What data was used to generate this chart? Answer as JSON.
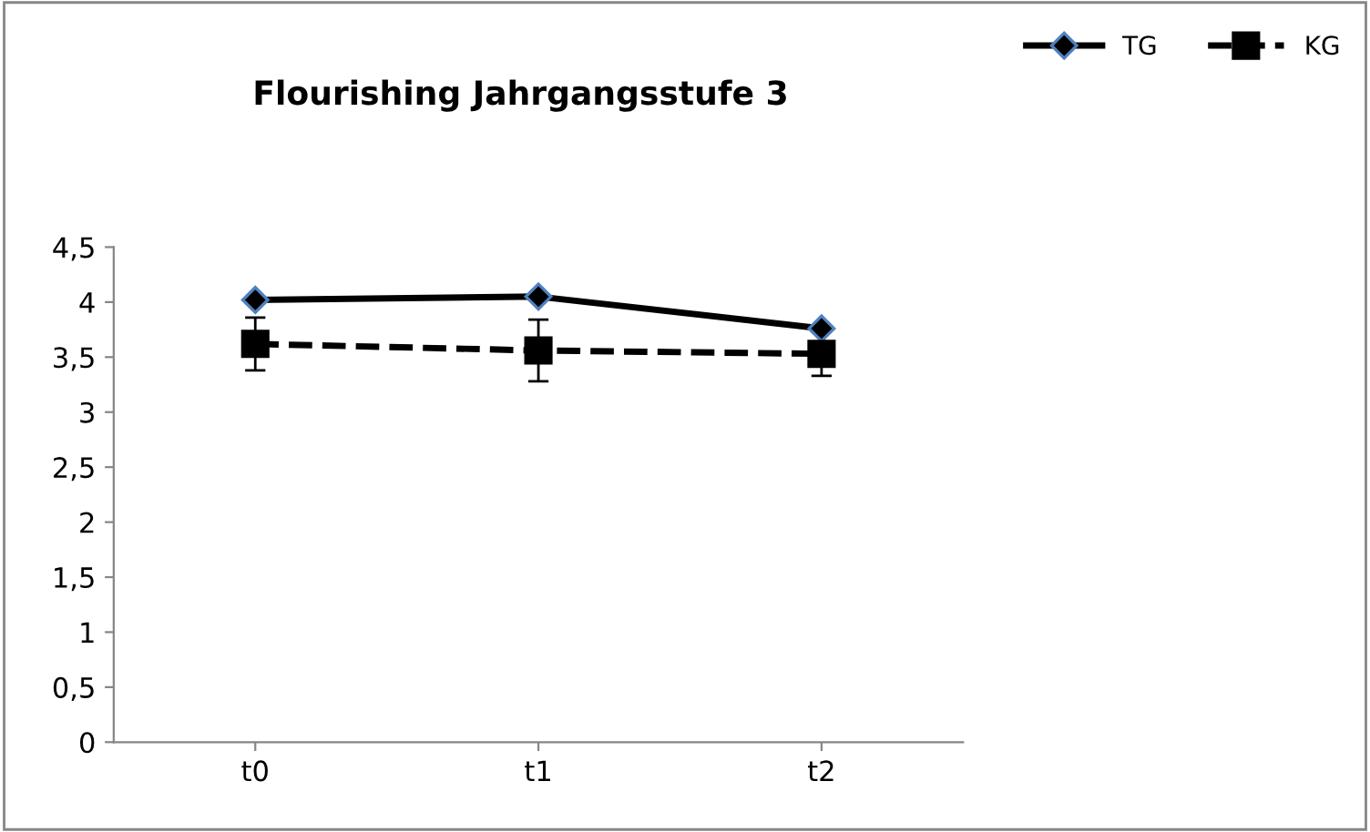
{
  "chart_data": {
    "type": "line",
    "title": "Flourishing Jahrgangsstufe 3",
    "categories": [
      "t0",
      "t1",
      "t2"
    ],
    "series": [
      {
        "name": "TG",
        "color": "#000000",
        "values": [
          4.02,
          4.05,
          3.76
        ],
        "marker": "diamond",
        "line_style": "solid"
      },
      {
        "name": "KG",
        "color": "#000000",
        "values": [
          3.62,
          3.56,
          3.53
        ],
        "marker": "square",
        "line_style": "dashed",
        "errors": [
          0.24,
          0.28,
          0.2
        ]
      }
    ],
    "ylim": [
      0,
      4.5
    ],
    "yticks": [
      {
        "value": 0,
        "label": "0"
      },
      {
        "value": 0.5,
        "label": "0,5"
      },
      {
        "value": 1,
        "label": "1"
      },
      {
        "value": 1.5,
        "label": "1,5"
      },
      {
        "value": 2,
        "label": "2"
      },
      {
        "value": 2.5,
        "label": "2,5"
      },
      {
        "value": 3,
        "label": "3"
      },
      {
        "value": 3.5,
        "label": "3,5"
      },
      {
        "value": 4,
        "label": "4"
      },
      {
        "value": 4.5,
        "label": "4,5"
      }
    ],
    "grid": false,
    "legend": "top right"
  }
}
